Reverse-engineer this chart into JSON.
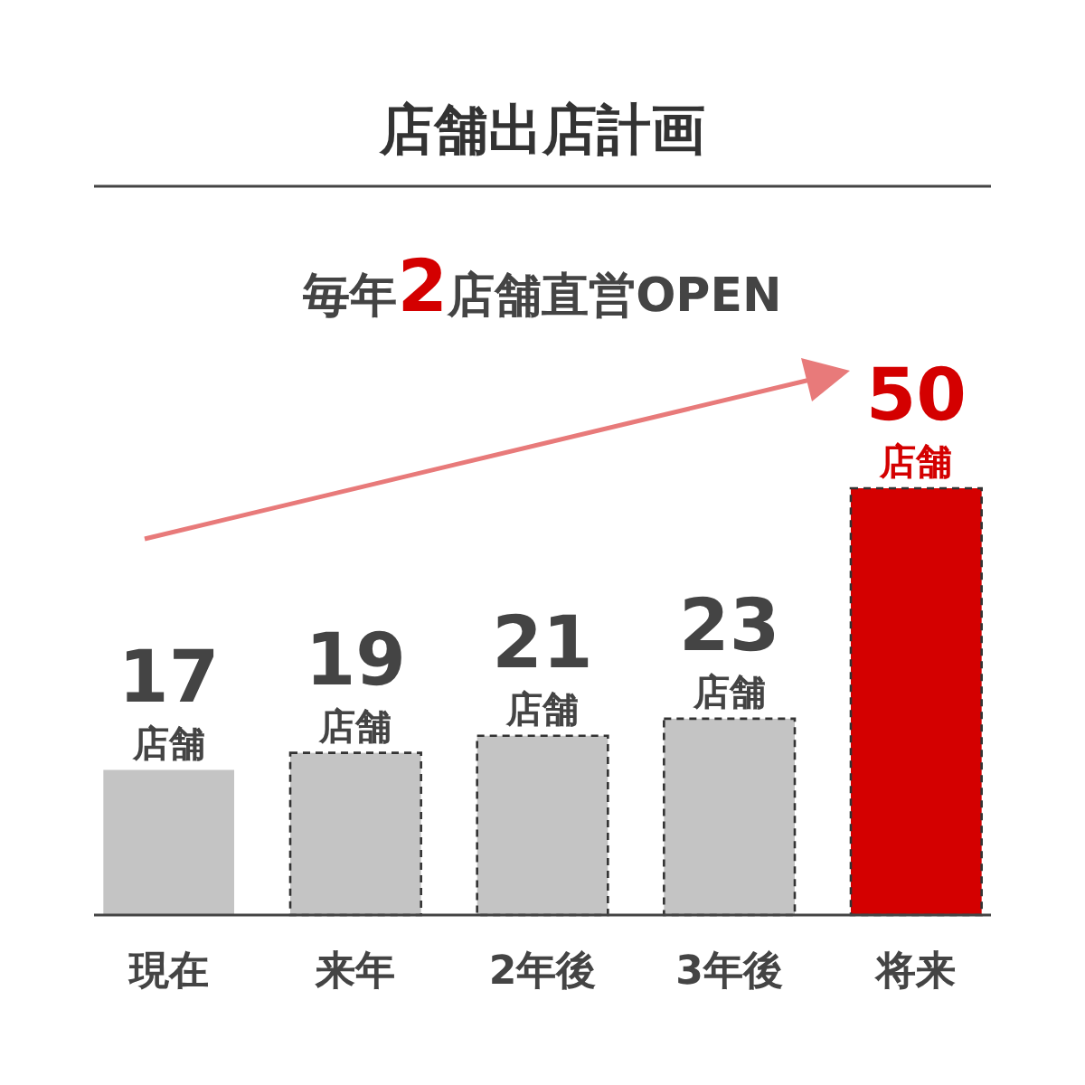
{
  "chart_data": {
    "type": "bar",
    "title": "店舗出店計画",
    "subtitle": "毎年2店舗直営OPEN",
    "categories": [
      "現在",
      "来年",
      "2年後",
      "3年後",
      "将来"
    ],
    "values": [
      17,
      19,
      21,
      23,
      50
    ],
    "colors": [
      "#c4c4c4",
      "#c4c4c4",
      "#c4c4c4",
      "#c4c4c4",
      "#d40000"
    ],
    "value_labels": [
      "17 店舗",
      "19 店舗",
      "21 店舗",
      "23 店舗",
      "50 店舗"
    ]
  }
}
